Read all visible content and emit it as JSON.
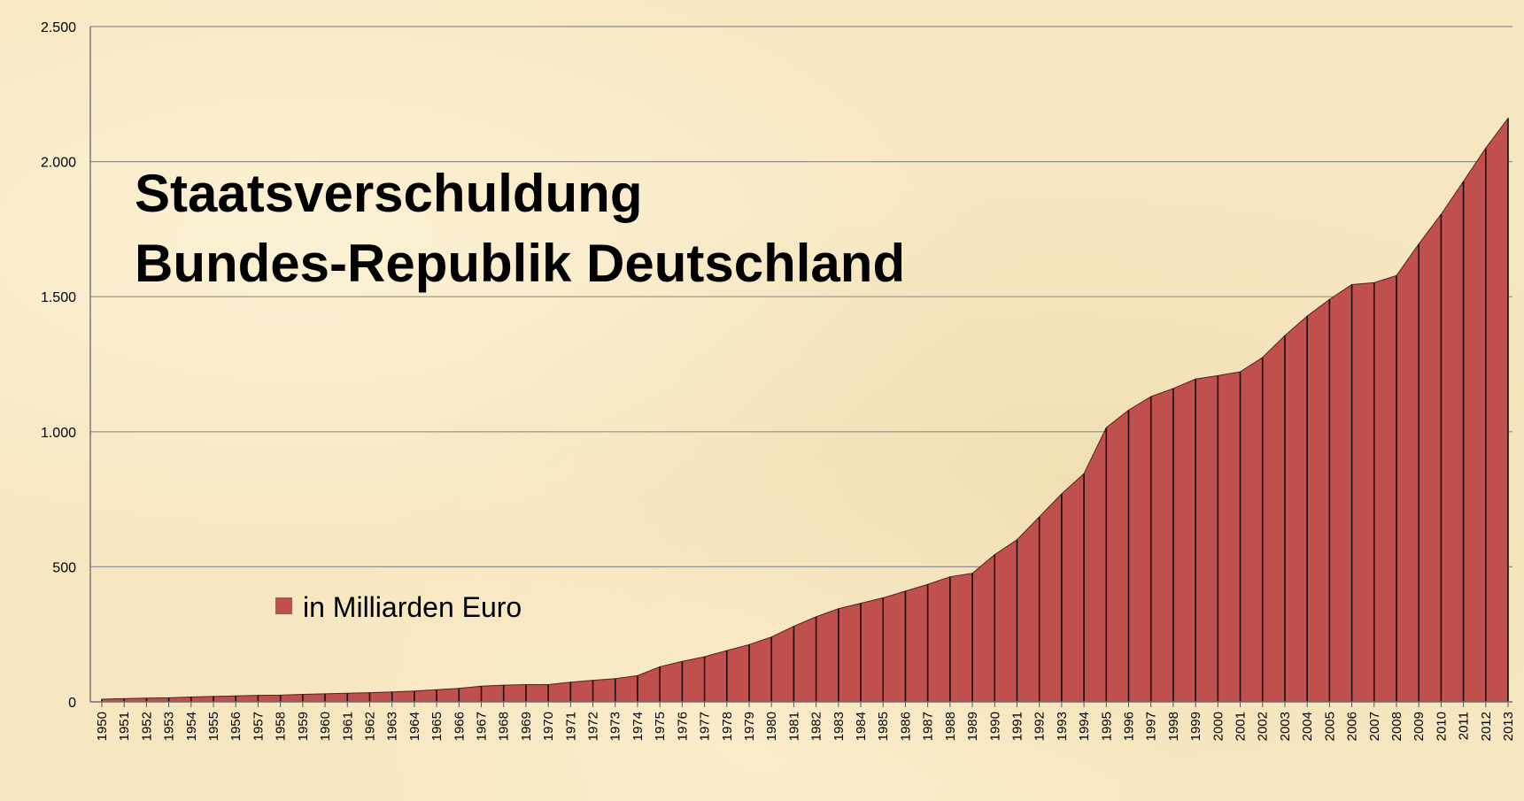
{
  "chart_data": {
    "type": "area",
    "title_lines": [
      "Staatsverschuldung",
      "Bundes-Republik Deutschland"
    ],
    "legend": [
      {
        "label": "in Milliarden Euro",
        "color": "#c0504d"
      }
    ],
    "legend_placement": "bottom-left",
    "ylim": [
      0,
      2500
    ],
    "y_ticks": [
      {
        "value": 0,
        "label": "0"
      },
      {
        "value": 500,
        "label": "500"
      },
      {
        "value": 1000,
        "label": "1.000"
      },
      {
        "value": 1500,
        "label": "1.500"
      },
      {
        "value": 2000,
        "label": "2.000"
      },
      {
        "value": 2500,
        "label": "2.500"
      }
    ],
    "grid": true,
    "series": [
      {
        "name": "in Milliarden Euro",
        "color": "#c0504d",
        "x": [
          "1950",
          "1951",
          "1952",
          "1953",
          "1954",
          "1955",
          "1956",
          "1957",
          "1958",
          "1959",
          "1960",
          "1961",
          "1962",
          "1963",
          "1964",
          "1965",
          "1966",
          "1967",
          "1968",
          "1969",
          "1970",
          "1971",
          "1972",
          "1973",
          "1974",
          "1975",
          "1976",
          "1977",
          "1978",
          "1979",
          "1980",
          "1981",
          "1982",
          "1983",
          "1984",
          "1985",
          "1986",
          "1987",
          "1988",
          "1989",
          "1990",
          "1991",
          "1992",
          "1993",
          "1994",
          "1995",
          "1996",
          "1997",
          "1998",
          "1999",
          "2000",
          "2001",
          "2002",
          "2003",
          "2004",
          "2005",
          "2006",
          "2007",
          "2008",
          "2009",
          "2010",
          "2011",
          "2012",
          "2013"
        ],
        "values": [
          10,
          12,
          14,
          15,
          18,
          20,
          22,
          24,
          25,
          28,
          30,
          32,
          34,
          37,
          40,
          45,
          50,
          58,
          62,
          64,
          64,
          73,
          80,
          86,
          97,
          130,
          150,
          167,
          190,
          212,
          240,
          280,
          315,
          345,
          365,
          385,
          410,
          435,
          463,
          476,
          545,
          600,
          685,
          770,
          845,
          1015,
          1080,
          1130,
          1160,
          1195,
          1208,
          1222,
          1275,
          1356,
          1428,
          1490,
          1545,
          1552,
          1578,
          1695,
          1805,
          1927,
          2050,
          2160
        ]
      }
    ]
  }
}
